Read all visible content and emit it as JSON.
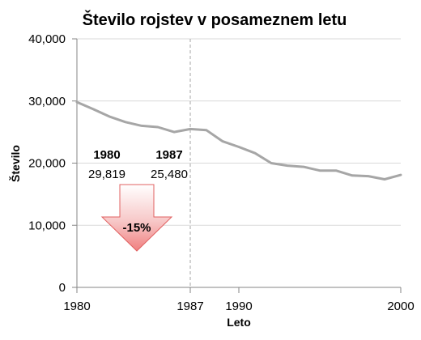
{
  "chart_data": {
    "type": "line",
    "title": "Število rojstev v posameznem letu",
    "xlabel": "Leto",
    "ylabel": "Število",
    "xlim": [
      1980,
      2000
    ],
    "ylim": [
      0,
      40000
    ],
    "x_ticks": [
      1980,
      1987,
      1990,
      2000
    ],
    "y_ticks": [
      0,
      10000,
      20000,
      30000,
      40000
    ],
    "y_tick_labels": [
      "0",
      "10,000",
      "20,000",
      "30,000",
      "40,000"
    ],
    "grid": "horizontal",
    "reference_line_x": 1987,
    "series": [
      {
        "color": "#a6a6a6",
        "x": [
          1980,
          1981,
          1982,
          1983,
          1984,
          1985,
          1986,
          1987,
          1988,
          1989,
          1990,
          1991,
          1992,
          1993,
          1994,
          1995,
          1996,
          1997,
          1998,
          1999,
          2000
        ],
        "y": [
          29819,
          28700,
          27500,
          26600,
          26000,
          25800,
          25000,
          25480,
          25300,
          23500,
          22600,
          21600,
          20000,
          19600,
          19400,
          18800,
          18800,
          18000,
          17900,
          17400,
          18100
        ]
      }
    ],
    "annotations": [
      {
        "year": "1980",
        "value": "29,819"
      },
      {
        "year": "1987",
        "value": "25,480"
      }
    ],
    "change_label": "-15%",
    "arrow_color": "#f0a0a0"
  }
}
